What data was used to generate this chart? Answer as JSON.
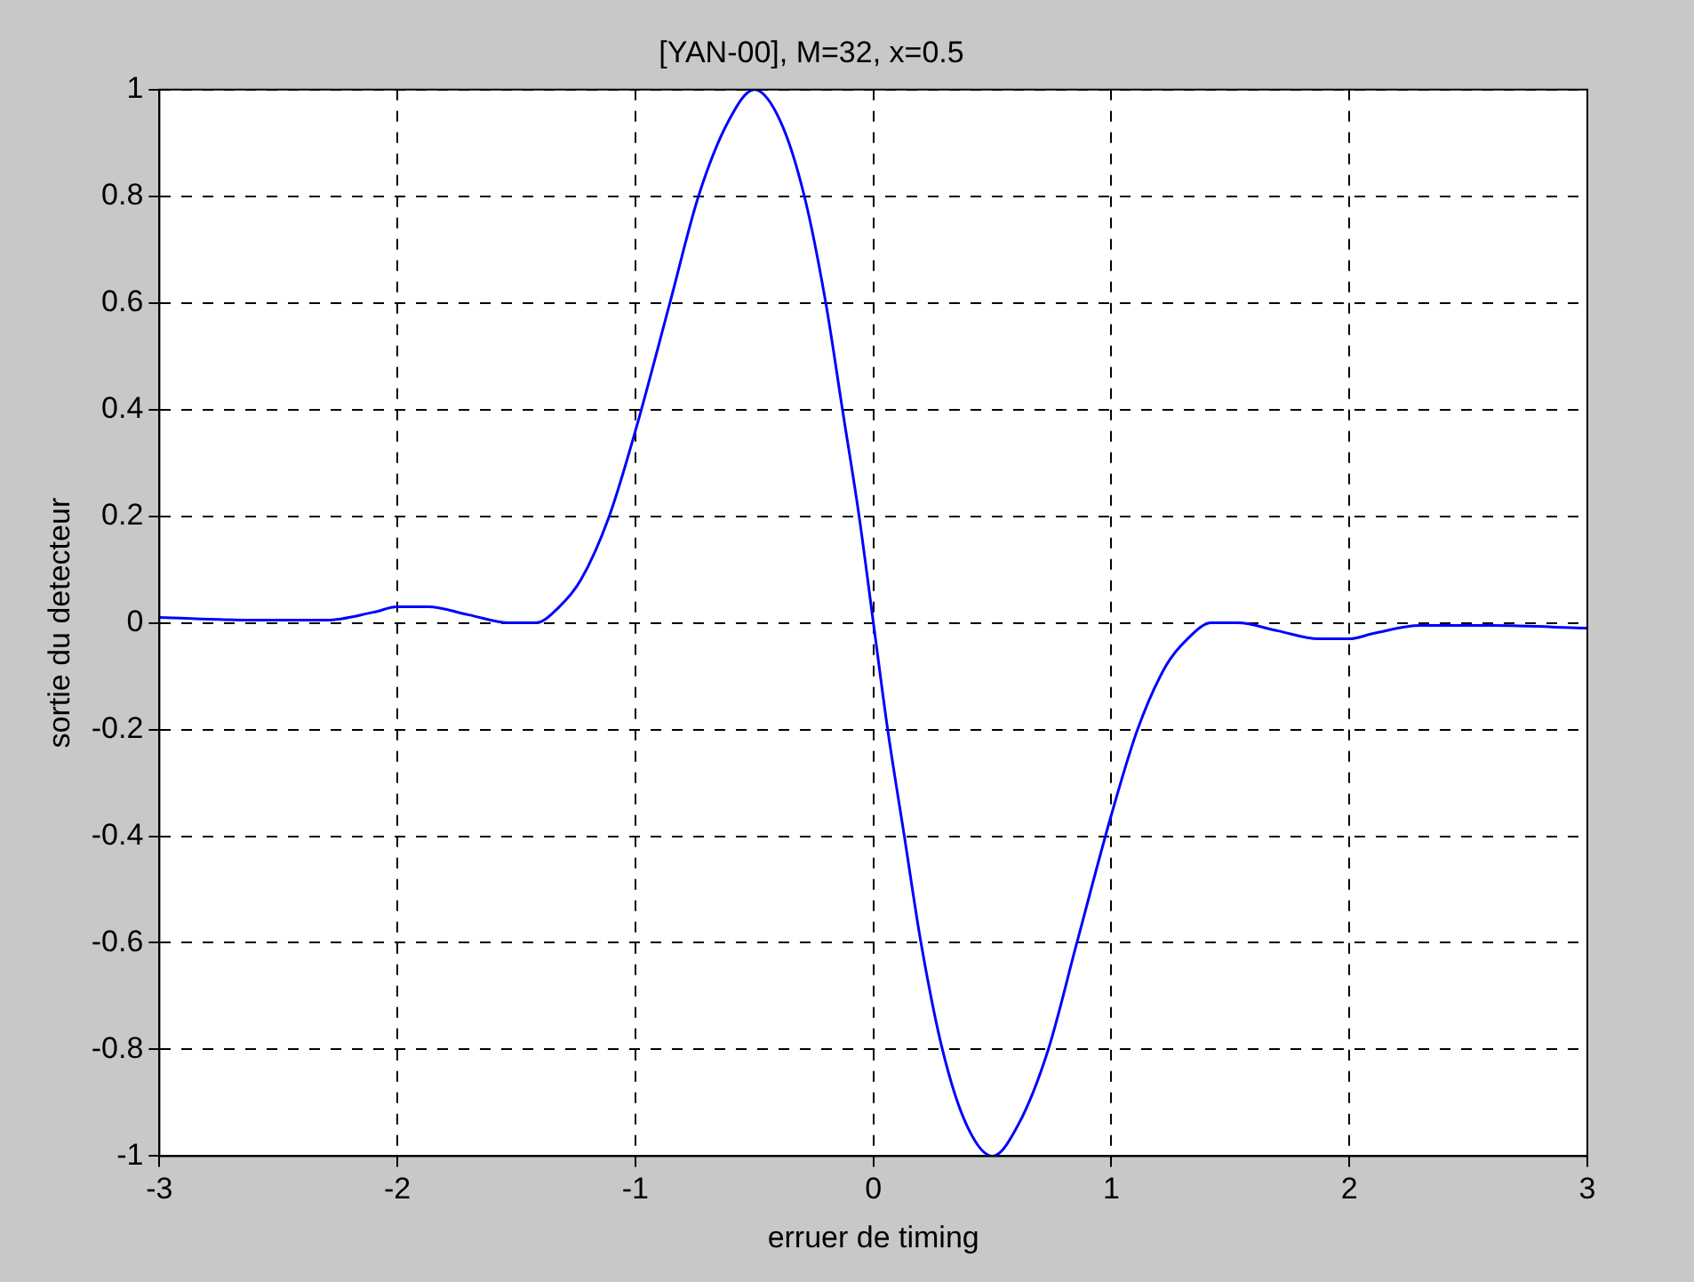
{
  "chart_data": {
    "type": "line",
    "title": "[YAN-00], M=32, x=0.5",
    "xlabel": "erruer de timing",
    "ylabel": "sortie du detecteur",
    "x": [
      -3,
      -2.6,
      -2.3,
      -2.1,
      -2,
      -1.87,
      -1.7,
      -1.53,
      -1.42,
      -1.32,
      -1.23,
      -1.11,
      -1,
      -0.855,
      -0.735,
      -0.61,
      -0.5,
      -0.39,
      -0.29,
      -0.2,
      -0.13,
      -0.06,
      0,
      0.06,
      0.13,
      0.2,
      0.29,
      0.39,
      0.5,
      0.61,
      0.735,
      0.855,
      1,
      1.11,
      1.23,
      1.32,
      1.42,
      1.53,
      1.7,
      1.87,
      2,
      2.1,
      2.3,
      2.6,
      3
    ],
    "series": [
      {
        "color": "#0000ff",
        "values": [
          0.01,
          0.005,
          0.005,
          0.02,
          0.03,
          0.03,
          0.015,
          0.0,
          0.0,
          0.03,
          0.08,
          0.2,
          0.36,
          0.6,
          0.8,
          0.94,
          1.0,
          0.94,
          0.8,
          0.6,
          0.4,
          0.2,
          0.0,
          -0.2,
          -0.4,
          -0.6,
          -0.8,
          -0.94,
          -1.0,
          -0.94,
          -0.8,
          -0.6,
          -0.36,
          -0.2,
          -0.08,
          -0.03,
          0.0,
          0.0,
          -0.015,
          -0.03,
          -0.03,
          -0.02,
          -0.005,
          -0.005,
          -0.01
        ]
      }
    ],
    "xlim": [
      -3,
      3
    ],
    "ylim": [
      -1,
      1
    ],
    "xticks": [
      -3,
      -2,
      -1,
      0,
      1,
      2,
      3
    ],
    "yticks": [
      -1,
      -0.8,
      -0.6,
      -0.4,
      -0.2,
      0,
      0.2,
      0.4,
      0.6,
      0.8,
      1
    ],
    "grid": true,
    "legend": false,
    "marker": "none",
    "line_style": "solid"
  }
}
